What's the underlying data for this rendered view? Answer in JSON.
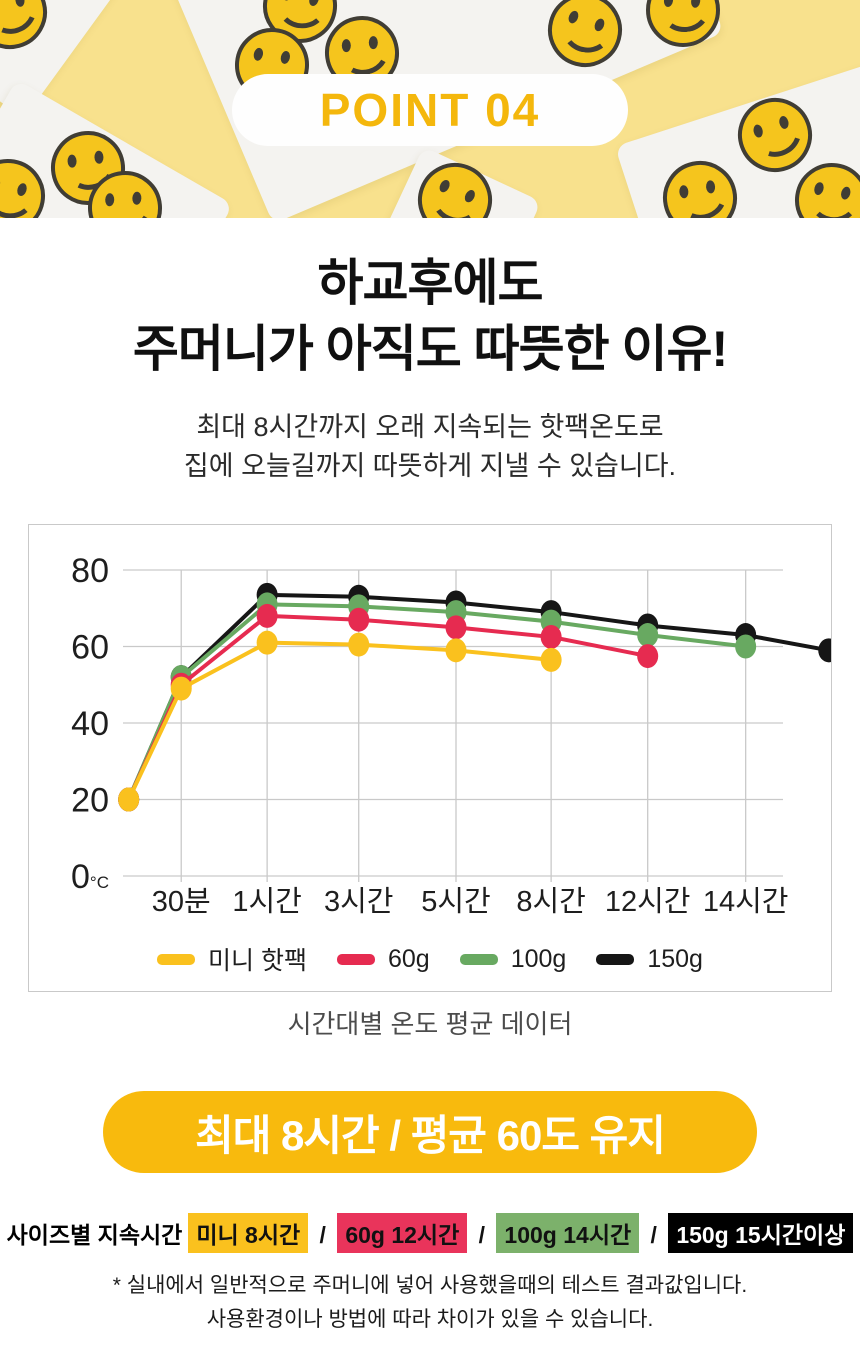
{
  "hero": {
    "badge": "POINT 04"
  },
  "headline": {
    "line1": "하교후에도",
    "line2": "주머니가 아직도 따뜻한 이유!"
  },
  "subtitle": {
    "line1": "최대 8시간까지 오래 지속되는 핫팩온도로",
    "line2": "집에 오늘길까지 따뜻하게 지낼 수 있습니다."
  },
  "chart_data": {
    "type": "line",
    "title": "시간대별 온도 평균 데이터",
    "unit": "°C",
    "y_ticks": [
      80,
      60,
      40,
      20,
      0
    ],
    "ylim": [
      0,
      88
    ],
    "grid": true,
    "legend_position": "bottom-inside",
    "x_labels": [
      "30분",
      "1시간",
      "3시간",
      "5시간",
      "8시간",
      "12시간",
      "14시간"
    ],
    "x_positions": [
      0.008,
      0.082,
      0.203,
      0.332,
      0.469,
      0.603,
      0.739,
      0.877,
      0.994
    ],
    "x_positions_note": "index 0 = unlabeled start point (room temp) left of 30분; indices 1-7 map to x_labels; index 8 = unlabeled end point at right plot edge (150g only)",
    "series": [
      {
        "name": "미니 핫팩",
        "color": "#FAC11E",
        "points": [
          [
            0,
            20
          ],
          [
            1,
            49
          ],
          [
            2,
            61
          ],
          [
            3,
            60.5
          ],
          [
            4,
            59
          ],
          [
            5,
            56.5
          ]
        ]
      },
      {
        "name": "60g",
        "color": "#E62B50",
        "points": [
          [
            0,
            20
          ],
          [
            1,
            50
          ],
          [
            2,
            68
          ],
          [
            3,
            67
          ],
          [
            4,
            65
          ],
          [
            5,
            62.5
          ],
          [
            6,
            57.5
          ]
        ]
      },
      {
        "name": "100g",
        "color": "#68A961",
        "points": [
          [
            0,
            20
          ],
          [
            1,
            52
          ],
          [
            2,
            71
          ],
          [
            3,
            70.5
          ],
          [
            4,
            69
          ],
          [
            5,
            66.5
          ],
          [
            6,
            63
          ],
          [
            7,
            60
          ]
        ]
      },
      {
        "name": "150g",
        "color": "#161616",
        "points": [
          [
            0,
            20
          ],
          [
            1,
            52
          ],
          [
            2,
            73.5
          ],
          [
            3,
            73
          ],
          [
            4,
            71.5
          ],
          [
            5,
            69
          ],
          [
            6,
            65.5
          ],
          [
            7,
            63
          ],
          [
            8,
            59
          ]
        ]
      }
    ]
  },
  "banner": {
    "text": "최대 8시간 / 평균 60도 유지"
  },
  "duration": {
    "label": "사이즈별 지속시간",
    "separator": "/",
    "items": [
      {
        "text": "미니 8시간",
        "bg": "#FAC11E",
        "fg": "#111111"
      },
      {
        "text": "60g 12시간",
        "bg": "#E9345B",
        "fg": "#111111"
      },
      {
        "text": "100g 14시간",
        "bg": "#7CB16B",
        "fg": "#111111"
      },
      {
        "text": "150g 15시간이상",
        "bg": "#000000",
        "fg": "#FFFFFF"
      }
    ]
  },
  "disclaimer": {
    "line1": "* 실내에서 일반적으로 주머니에 넣어 사용했을때의 테스트 결과값입니다.",
    "line2": "사용환경이나 방법에 따라 차이가 있을 수 있습니다."
  },
  "colors": {
    "hero_background": "#F8E18D",
    "badge_text": "#F4B70C",
    "cta_background": "#F8BA0D",
    "grid_line": "#C9C9C9"
  }
}
